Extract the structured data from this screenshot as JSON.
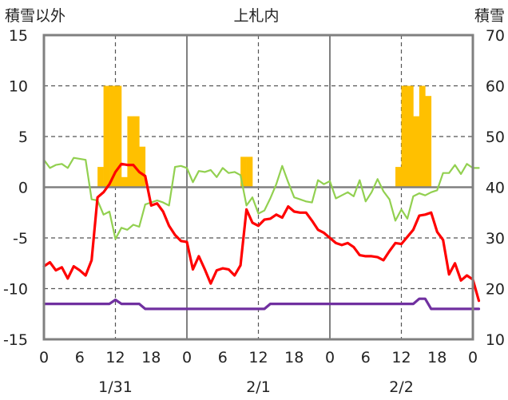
{
  "chart_data": {
    "type": "bar+line",
    "title": "上札内",
    "y_left_label": "積雪以外",
    "y_right_label": "積雪",
    "y_left_ticks": [
      "15",
      "10",
      "5",
      "0",
      "-5",
      "-10",
      "-15"
    ],
    "y_right_ticks": [
      "70",
      "60",
      "50",
      "40",
      "30",
      "20",
      "10"
    ],
    "x_ticks": [
      "0",
      "6",
      "12",
      "18",
      "0",
      "6",
      "12",
      "18",
      "0",
      "6",
      "12",
      "18",
      "0"
    ],
    "x_day_labels": [
      "1/31",
      "2/1",
      "2/2"
    ],
    "ylim_left": [
      -15,
      15
    ],
    "ylim_right": [
      10,
      70
    ],
    "grid": true,
    "colors": {
      "bars": "#ffc000",
      "red": "#ff0000",
      "green": "#92d050",
      "purple": "#7030a0",
      "axis": "#808080"
    },
    "bar_values": [
      {
        "hour": 9,
        "value": 2
      },
      {
        "hour": 10,
        "value": 10
      },
      {
        "hour": 11,
        "value": 10
      },
      {
        "hour": 12,
        "value": 10
      },
      {
        "hour": 13,
        "value": 1
      },
      {
        "hour": 14,
        "value": 7
      },
      {
        "hour": 15,
        "value": 7
      },
      {
        "hour": 16,
        "value": 4
      },
      {
        "hour": 33,
        "value": 3
      },
      {
        "hour": 34,
        "value": 3
      },
      {
        "hour": 59,
        "value": 2
      },
      {
        "hour": 60,
        "value": 10
      },
      {
        "hour": 61,
        "value": 10
      },
      {
        "hour": 62,
        "value": 7
      },
      {
        "hour": 63,
        "value": 10
      },
      {
        "hour": 64,
        "value": 9
      }
    ],
    "series": [
      {
        "color": "red",
        "values": [
          -7.8,
          -7.4,
          -8.2,
          -7.9,
          -9.0,
          -7.8,
          -8.2,
          -8.7,
          -7.2,
          -1.0,
          -0.5,
          0.3,
          1.5,
          2.3,
          2.2,
          2.2,
          1.5,
          1.1,
          -1.8,
          -1.6,
          -2.4,
          -3.8,
          -4.7,
          -5.3,
          -5.4,
          -8.1,
          -6.8,
          -8.1,
          -9.5,
          -8.2,
          -8.0,
          -8.1,
          -8.7,
          -7.7,
          -2.2,
          -3.5,
          -3.8,
          -3.2,
          -3.1,
          -2.7,
          -3.0,
          -1.9,
          -2.4,
          -2.5,
          -2.5,
          -3.3,
          -4.2,
          -4.5,
          -5.0,
          -5.5,
          -5.7,
          -5.5,
          -5.9,
          -6.7,
          -6.8,
          -6.8,
          -6.9,
          -7.2,
          -6.3,
          -5.5,
          -5.6,
          -4.9,
          -4.2,
          -2.8,
          -2.7,
          -2.5,
          -4.4,
          -5.2,
          -8.6,
          -7.5,
          -9.2,
          -8.7,
          -9.1,
          -11.2
        ]
      },
      {
        "color": "green",
        "values": [
          2.7,
          1.9,
          2.2,
          2.3,
          1.9,
          2.9,
          2.8,
          2.7,
          -1.2,
          -1.3,
          -2.7,
          -2.4,
          -5.1,
          -4.0,
          -4.2,
          -3.7,
          -3.9,
          -1.7,
          -1.5,
          -1.3,
          -1.5,
          -1.8,
          2.0,
          2.1,
          1.9,
          0.5,
          1.6,
          1.5,
          1.7,
          1.0,
          1.9,
          1.4,
          1.5,
          1.2,
          -1.8,
          -1.0,
          -2.6,
          -2.3,
          -1.1,
          0.3,
          2.1,
          0.5,
          -1.0,
          -1.2,
          -1.4,
          -1.5,
          0.7,
          0.3,
          0.6,
          -1.1,
          -0.8,
          -0.5,
          -0.9,
          0.7,
          -1.4,
          -0.5,
          0.8,
          -0.4,
          -1.2,
          -3.3,
          -2.2,
          -3.1,
          -0.9,
          -0.6,
          -0.8,
          -0.5,
          -0.3,
          1.4,
          1.4,
          2.2,
          1.3,
          2.3,
          1.9,
          1.9
        ]
      },
      {
        "color": "purple",
        "values": [
          -11.5,
          -11.5,
          -11.5,
          -11.5,
          -11.5,
          -11.5,
          -11.5,
          -11.5,
          -11.5,
          -11.5,
          -11.5,
          -11.5,
          -11.1,
          -11.5,
          -11.5,
          -11.5,
          -11.5,
          -12.0,
          -12.0,
          -12.0,
          -12.0,
          -12.0,
          -12.0,
          -12.0,
          -12.0,
          -12.0,
          -12.0,
          -12.0,
          -12.0,
          -12.0,
          -12.0,
          -12.0,
          -12.0,
          -12.0,
          -12.0,
          -12.0,
          -12.0,
          -12.0,
          -11.5,
          -11.5,
          -11.5,
          -11.5,
          -11.5,
          -11.5,
          -11.5,
          -11.5,
          -11.5,
          -11.5,
          -11.5,
          -11.5,
          -11.5,
          -11.5,
          -11.5,
          -11.5,
          -11.5,
          -11.5,
          -11.5,
          -11.5,
          -11.5,
          -11.5,
          -11.5,
          -11.5,
          -11.5,
          -11.0,
          -11.0,
          -12.0,
          -12.0,
          -12.0,
          -12.0,
          -12.0,
          -12.0,
          -12.0,
          -12.0,
          -12.0
        ]
      }
    ]
  }
}
